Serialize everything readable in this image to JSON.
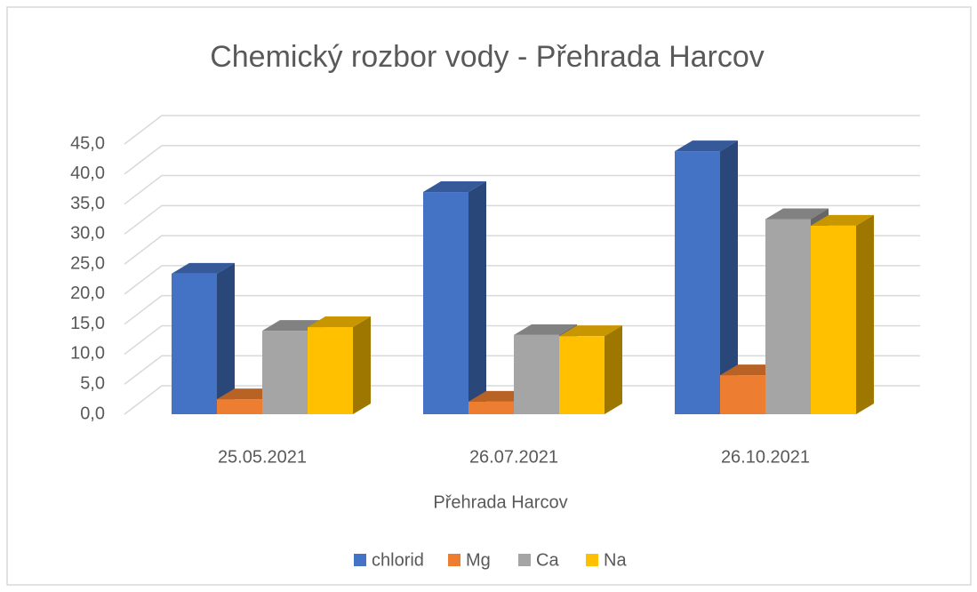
{
  "chart_data": {
    "type": "bar3d",
    "title": "Chemický rozbor vody - Přehrada Harcov",
    "x_label": "Přehrada Harcov",
    "categories": [
      "25.05.2021",
      "26.07.2021",
      "26.10.2021"
    ],
    "series": [
      {
        "name": "chlorid",
        "color": "#4472c4",
        "values": [
          23.4,
          37.0,
          43.8
        ]
      },
      {
        "name": "Mg",
        "color": "#ed7d31",
        "values": [
          2.5,
          2.1,
          6.5
        ]
      },
      {
        "name": "Ca",
        "color": "#a5a5a5",
        "values": [
          13.9,
          13.2,
          32.5
        ]
      },
      {
        "name": "Na",
        "color": "#ffc000",
        "values": [
          14.5,
          13.0,
          31.4
        ]
      }
    ],
    "ylim": [
      0,
      45
    ],
    "yticks": [
      {
        "value": 0,
        "label": "0,0"
      },
      {
        "value": 5,
        "label": "5,0"
      },
      {
        "value": 10,
        "label": "10,0"
      },
      {
        "value": 15,
        "label": "15,0"
      },
      {
        "value": 20,
        "label": "20,0"
      },
      {
        "value": 25,
        "label": "25,0"
      },
      {
        "value": 30,
        "label": "30,0"
      },
      {
        "value": 35,
        "label": "35,0"
      },
      {
        "value": 40,
        "label": "40,0"
      },
      {
        "value": 45,
        "label": "45,0"
      }
    ],
    "grid": true,
    "legend": "bottom"
  }
}
